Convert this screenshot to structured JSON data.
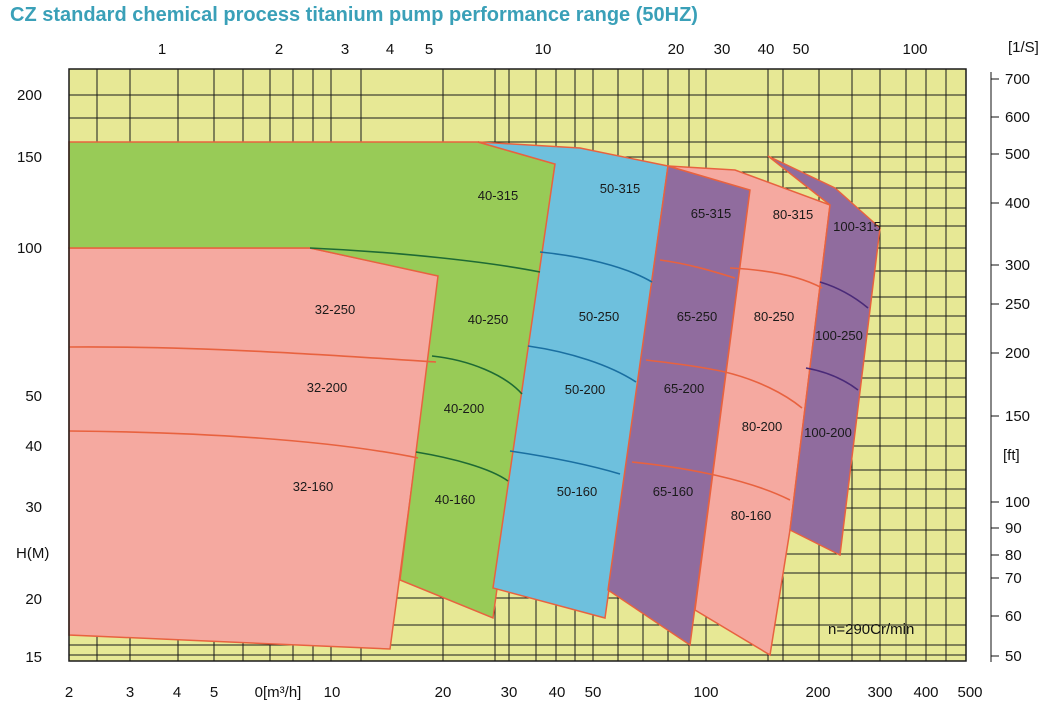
{
  "title": "CZ standard chemical process titanium pump performance range (50HZ)",
  "chart_data": {
    "type": "area",
    "title": "CZ standard chemical process titanium pump performance range (50HZ)",
    "xlabel": "0[m³/h]",
    "ylabel": "H(M)",
    "x_scale": "log",
    "y_scale": "log",
    "xlim": [
      2,
      500
    ],
    "ylim": [
      15,
      220
    ],
    "x_ticks": [
      "2",
      "3",
      "4",
      "5",
      "0[m³/h]",
      "10",
      "20",
      "30",
      "40",
      "50",
      "100",
      "200",
      "300",
      "400",
      "500"
    ],
    "y_ticks": [
      "200",
      "150",
      "100",
      "50",
      "40",
      "30",
      "20",
      "15"
    ],
    "top_axis": {
      "unit": "[1/S]",
      "ticks": [
        "1",
        "2",
        "3",
        "4",
        "5",
        "10",
        "20",
        "30",
        "40",
        "50",
        "100"
      ]
    },
    "right_axis": {
      "unit": "[ft]",
      "ticks": [
        "700",
        "600",
        "500",
        "400",
        "300",
        "250",
        "200",
        "150",
        "100",
        "90",
        "80",
        "70",
        "60",
        "50"
      ]
    },
    "annotation": "n=290Cr/min",
    "grid": true,
    "pumps": [
      "32-250",
      "32-200",
      "32-160",
      "40-315",
      "40-250",
      "40-200",
      "40-160",
      "50-315",
      "50-250",
      "50-200",
      "50-160",
      "65-315",
      "65-250",
      "65-200",
      "65-160",
      "80-315",
      "80-250",
      "80-200",
      "80-160",
      "100-315",
      "100-250",
      "100-200"
    ],
    "colors": {
      "background": "#e7e895",
      "pink": "#f5a9a0",
      "green": "#98cb57",
      "blue": "#6ec0dd",
      "purple": "#906c9e",
      "grid": "#1a1a1a",
      "edge_red": "#e8623f",
      "title": "#3aa0b8"
    }
  }
}
